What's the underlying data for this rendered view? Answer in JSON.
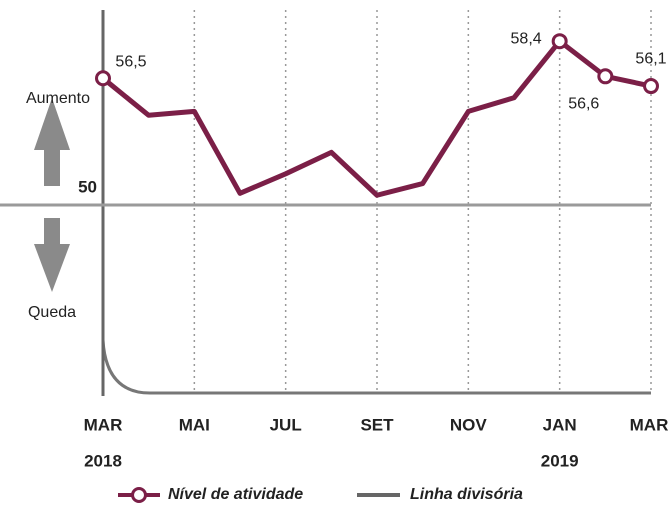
{
  "chart_data": {
    "type": "line",
    "categories": [
      "MAR",
      null,
      "MAI",
      null,
      "JUL",
      null,
      "SET",
      null,
      "NOV",
      null,
      "JAN",
      null,
      "MAR"
    ],
    "category_years": [
      "2018",
      null,
      null,
      null,
      null,
      null,
      null,
      null,
      null,
      null,
      "2019",
      null,
      null
    ],
    "series": [
      {
        "name": "Nível de atividade",
        "color": "#7b1f47",
        "values": [
          56.5,
          54.6,
          54.8,
          50.6,
          51.6,
          52.7,
          50.5,
          51.1,
          54.8,
          55.5,
          58.4,
          56.6,
          56.1
        ],
        "value_labels": [
          "56,5",
          null,
          null,
          null,
          null,
          null,
          null,
          null,
          null,
          null,
          "58,4",
          "56,6",
          "56,1"
        ]
      }
    ],
    "reference_line": {
      "name": "Linha divisória",
      "color": "#9a9a9a"
    },
    "annotations": [
      "Aumento",
      "Queda"
    ],
    "ylim": [
      40,
      60
    ],
    "yticks": [
      50
    ],
    "grid": true
  }
}
